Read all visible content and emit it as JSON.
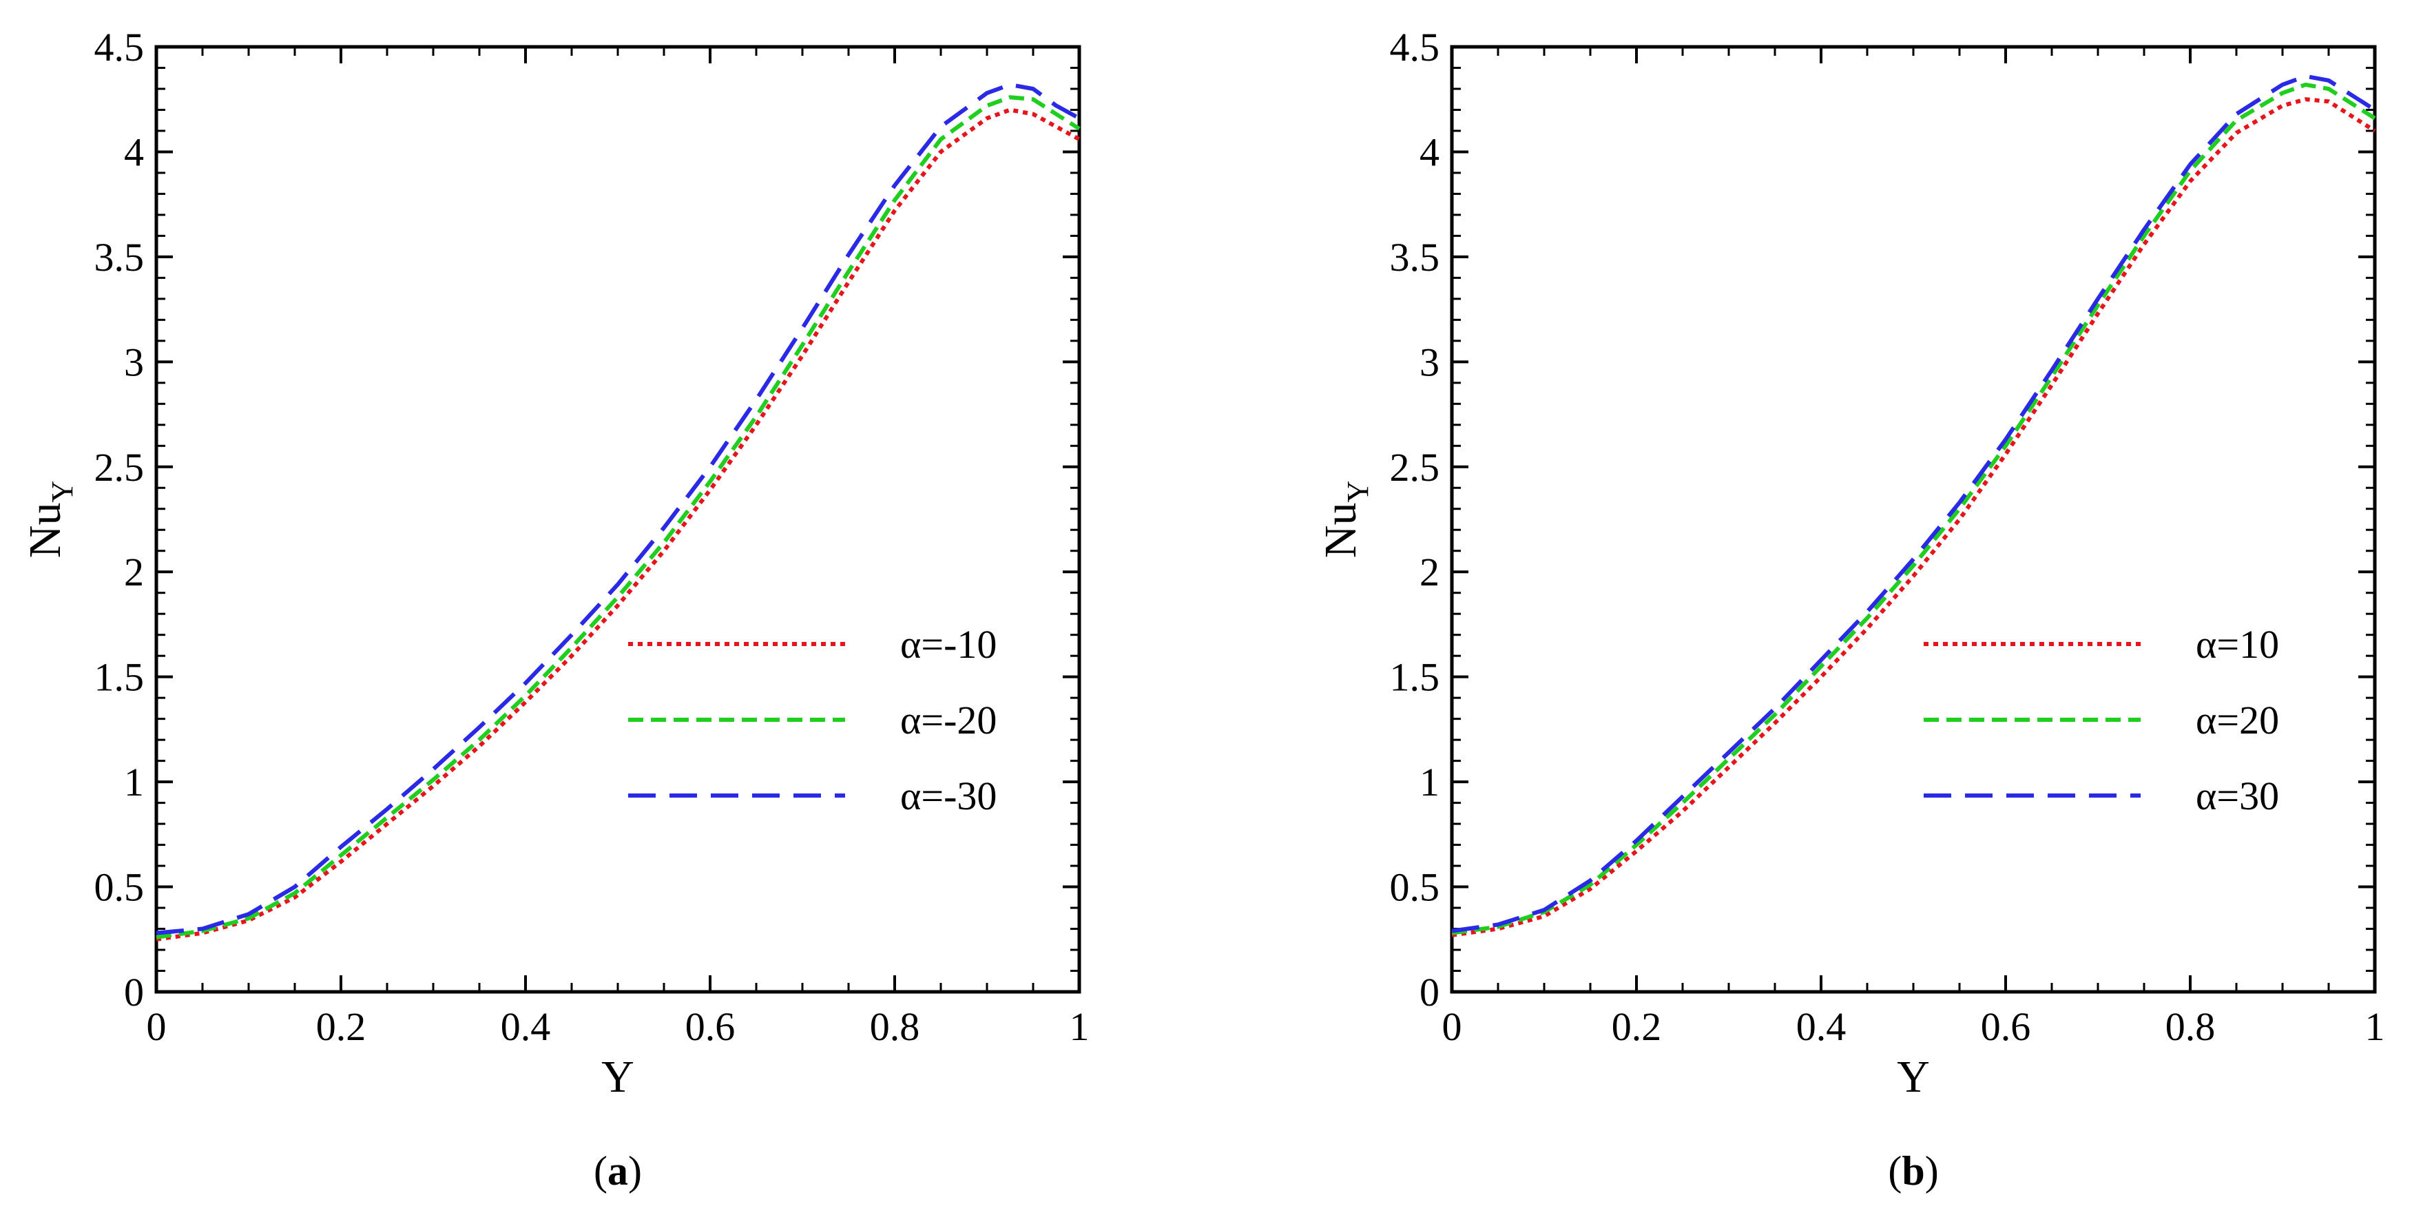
{
  "chart_data": [
    {
      "type": "line",
      "panel": "a",
      "caption": {
        "open": "(",
        "letter": "a",
        "close": ")"
      },
      "xlabel": "Y",
      "ylabel": {
        "main": "Nu",
        "sub": "Y"
      },
      "xlim": [
        0,
        1
      ],
      "ylim": [
        0,
        4.5
      ],
      "xticks": [
        0,
        0.2,
        0.4,
        0.6,
        0.8,
        1
      ],
      "xtick_labels": [
        "0",
        "0.2",
        "0.4",
        "0.6",
        "0.8",
        "1"
      ],
      "yticks": [
        0,
        0.5,
        1,
        1.5,
        2,
        2.5,
        3,
        3.5,
        4,
        4.5
      ],
      "ytick_labels": [
        "0",
        "0.5",
        "1",
        "1.5",
        "2",
        "2.5",
        "3",
        "3.5",
        "4",
        "4.5"
      ],
      "legend_position": "center-right",
      "x": [
        0,
        0.05,
        0.1,
        0.15,
        0.2,
        0.25,
        0.3,
        0.35,
        0.4,
        0.45,
        0.5,
        0.55,
        0.6,
        0.65,
        0.7,
        0.75,
        0.8,
        0.85,
        0.9,
        0.925,
        0.95,
        0.975,
        1
      ],
      "series": [
        {
          "name": "α=-10",
          "color": "#e8141c",
          "dash": "dotted",
          "values": [
            0.25,
            0.28,
            0.34,
            0.45,
            0.62,
            0.8,
            0.98,
            1.17,
            1.38,
            1.6,
            1.84,
            2.1,
            2.39,
            2.7,
            3.03,
            3.38,
            3.72,
            4.0,
            4.16,
            4.2,
            4.18,
            4.12,
            4.06
          ]
        },
        {
          "name": "α=-20",
          "color": "#1fce1f",
          "dash": "short-dash",
          "values": [
            0.26,
            0.29,
            0.35,
            0.47,
            0.65,
            0.83,
            1.01,
            1.2,
            1.41,
            1.64,
            1.88,
            2.14,
            2.43,
            2.74,
            3.08,
            3.43,
            3.77,
            4.06,
            4.22,
            4.26,
            4.25,
            4.18,
            4.11
          ]
        },
        {
          "name": "α=-30",
          "color": "#2a2ae6",
          "dash": "long-dash",
          "values": [
            0.28,
            0.3,
            0.37,
            0.5,
            0.69,
            0.87,
            1.06,
            1.26,
            1.47,
            1.7,
            1.94,
            2.21,
            2.5,
            2.82,
            3.16,
            3.51,
            3.84,
            4.12,
            4.28,
            4.32,
            4.3,
            4.22,
            4.16
          ]
        }
      ]
    },
    {
      "type": "line",
      "panel": "b",
      "caption": {
        "open": "(",
        "letter": "b",
        "close": ")"
      },
      "xlabel": "Y",
      "ylabel": {
        "main": "Nu",
        "sub": "Y"
      },
      "xlim": [
        0,
        1
      ],
      "ylim": [
        0,
        4.5
      ],
      "xticks": [
        0,
        0.2,
        0.4,
        0.6,
        0.8,
        1
      ],
      "xtick_labels": [
        "0",
        "0.2",
        "0.4",
        "0.6",
        "0.8",
        "1"
      ],
      "yticks": [
        0,
        0.5,
        1,
        1.5,
        2,
        2.5,
        3,
        3.5,
        4,
        4.5
      ],
      "ytick_labels": [
        "0",
        "0.5",
        "1",
        "1.5",
        "2",
        "2.5",
        "3",
        "3.5",
        "4",
        "4.5"
      ],
      "legend_position": "center-right",
      "x": [
        0,
        0.05,
        0.1,
        0.15,
        0.2,
        0.25,
        0.3,
        0.35,
        0.4,
        0.45,
        0.5,
        0.55,
        0.6,
        0.65,
        0.7,
        0.75,
        0.8,
        0.85,
        0.9,
        0.925,
        0.95,
        0.975,
        1
      ],
      "series": [
        {
          "name": "α=10",
          "color": "#e8141c",
          "dash": "dotted",
          "values": [
            0.27,
            0.3,
            0.36,
            0.49,
            0.67,
            0.86,
            1.07,
            1.28,
            1.5,
            1.73,
            1.98,
            2.25,
            2.56,
            2.89,
            3.23,
            3.56,
            3.86,
            4.09,
            4.22,
            4.25,
            4.24,
            4.17,
            4.1
          ]
        },
        {
          "name": "α=20",
          "color": "#1fce1f",
          "dash": "short-dash",
          "values": [
            0.28,
            0.31,
            0.38,
            0.51,
            0.7,
            0.9,
            1.11,
            1.32,
            1.55,
            1.78,
            2.03,
            2.3,
            2.6,
            2.93,
            3.27,
            3.6,
            3.91,
            4.15,
            4.28,
            4.32,
            4.3,
            4.23,
            4.16
          ]
        },
        {
          "name": "α=30",
          "color": "#2a2ae6",
          "dash": "long-dash",
          "values": [
            0.29,
            0.32,
            0.39,
            0.53,
            0.72,
            0.93,
            1.14,
            1.35,
            1.58,
            1.81,
            2.06,
            2.33,
            2.63,
            2.96,
            3.3,
            3.63,
            3.94,
            4.18,
            4.32,
            4.36,
            4.34,
            4.27,
            4.2
          ]
        }
      ]
    }
  ]
}
